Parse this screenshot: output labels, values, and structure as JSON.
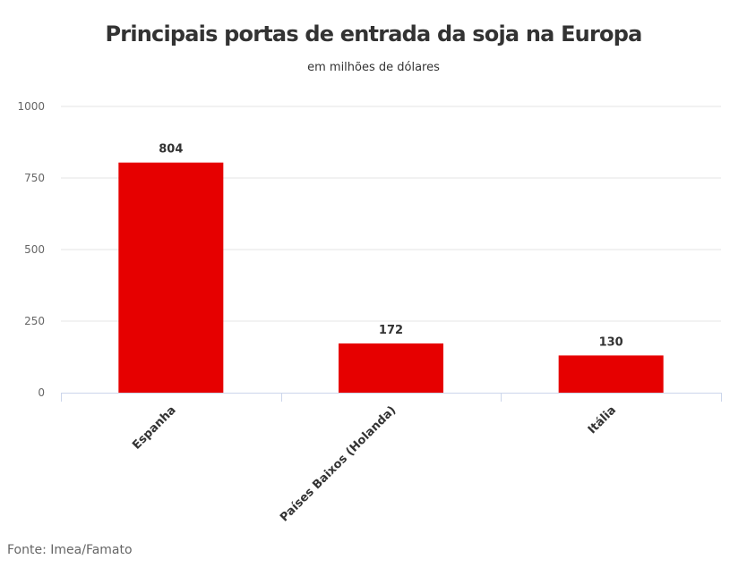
{
  "chart_data": {
    "type": "bar",
    "title": "Principais portas de entrada da soja na Europa",
    "subtitle": "em milhões de dólares",
    "categories": [
      "Espanha",
      "Países Baixos (Holanda)",
      "Itália"
    ],
    "values": [
      804,
      172,
      130
    ],
    "yticks": [
      "0",
      "250",
      "500",
      "750",
      "1000"
    ],
    "ylim": [
      0,
      1000
    ],
    "xlabel": "",
    "ylabel": "",
    "bar_color": "#e60000",
    "grid": true,
    "source": "Fonte: Imea/Famato"
  }
}
